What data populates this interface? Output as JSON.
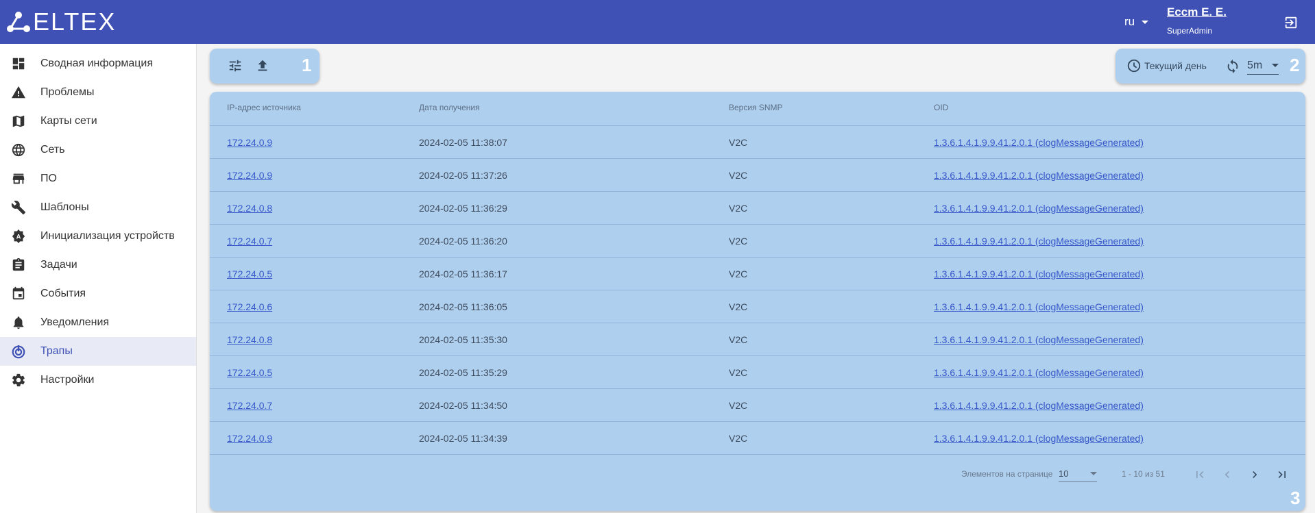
{
  "header": {
    "logo": "ELTEX",
    "lang": "ru",
    "user_name": "Ессm Е. Е.",
    "user_role": "SuperAdmin"
  },
  "sidebar": {
    "items": [
      {
        "label": "Сводная информация",
        "icon": "dashboard-icon"
      },
      {
        "label": "Проблемы",
        "icon": "warning-icon"
      },
      {
        "label": "Карты сети",
        "icon": "map-icon"
      },
      {
        "label": "Сеть",
        "icon": "globe-icon"
      },
      {
        "label": "ПО",
        "icon": "store-icon"
      },
      {
        "label": "Шаблоны",
        "icon": "wrench-icon"
      },
      {
        "label": "Инициализация устройств",
        "icon": "init-icon"
      },
      {
        "label": "Задачи",
        "icon": "clipboard-icon"
      },
      {
        "label": "События",
        "icon": "calendar-icon"
      },
      {
        "label": "Уведомления",
        "icon": "bell-icon"
      },
      {
        "label": "Трапы",
        "icon": "trap-icon",
        "active": true
      },
      {
        "label": "Настройки",
        "icon": "gear-icon"
      }
    ]
  },
  "toolbar": {
    "marker": "1"
  },
  "timebar": {
    "period": "Текущий день",
    "refresh": "5m",
    "marker": "2"
  },
  "table": {
    "columns": [
      "IP-адрес источника",
      "Дата получения",
      "Версия SNMP",
      "OID"
    ],
    "rows": [
      [
        "172.24.0.9",
        "2024-02-05 11:38:07",
        "V2C",
        "1.3.6.1.4.1.9.9.41.2.0.1 (clogMessageGenerated)"
      ],
      [
        "172.24.0.9",
        "2024-02-05 11:37:26",
        "V2C",
        "1.3.6.1.4.1.9.9.41.2.0.1 (clogMessageGenerated)"
      ],
      [
        "172.24.0.8",
        "2024-02-05 11:36:29",
        "V2C",
        "1.3.6.1.4.1.9.9.41.2.0.1 (clogMessageGenerated)"
      ],
      [
        "172.24.0.7",
        "2024-02-05 11:36:20",
        "V2C",
        "1.3.6.1.4.1.9.9.41.2.0.1 (clogMessageGenerated)"
      ],
      [
        "172.24.0.5",
        "2024-02-05 11:36:17",
        "V2C",
        "1.3.6.1.4.1.9.9.41.2.0.1 (clogMessageGenerated)"
      ],
      [
        "172.24.0.6",
        "2024-02-05 11:36:05",
        "V2C",
        "1.3.6.1.4.1.9.9.41.2.0.1 (clogMessageGenerated)"
      ],
      [
        "172.24.0.8",
        "2024-02-05 11:35:30",
        "V2C",
        "1.3.6.1.4.1.9.9.41.2.0.1 (clogMessageGenerated)"
      ],
      [
        "172.24.0.5",
        "2024-02-05 11:35:29",
        "V2C",
        "1.3.6.1.4.1.9.9.41.2.0.1 (clogMessageGenerated)"
      ],
      [
        "172.24.0.7",
        "2024-02-05 11:34:50",
        "V2C",
        "1.3.6.1.4.1.9.9.41.2.0.1 (clogMessageGenerated)"
      ],
      [
        "172.24.0.9",
        "2024-02-05 11:34:39",
        "V2C",
        "1.3.6.1.4.1.9.9.41.2.0.1 (clogMessageGenerated)"
      ]
    ],
    "marker": "3"
  },
  "pagination": {
    "per_page_label": "Элементов на странице",
    "per_page": "10",
    "range": "1 - 10 из 51"
  },
  "colors": {
    "header": "#3f51b5",
    "panel": "#afcfee",
    "link": "#3456c9"
  }
}
